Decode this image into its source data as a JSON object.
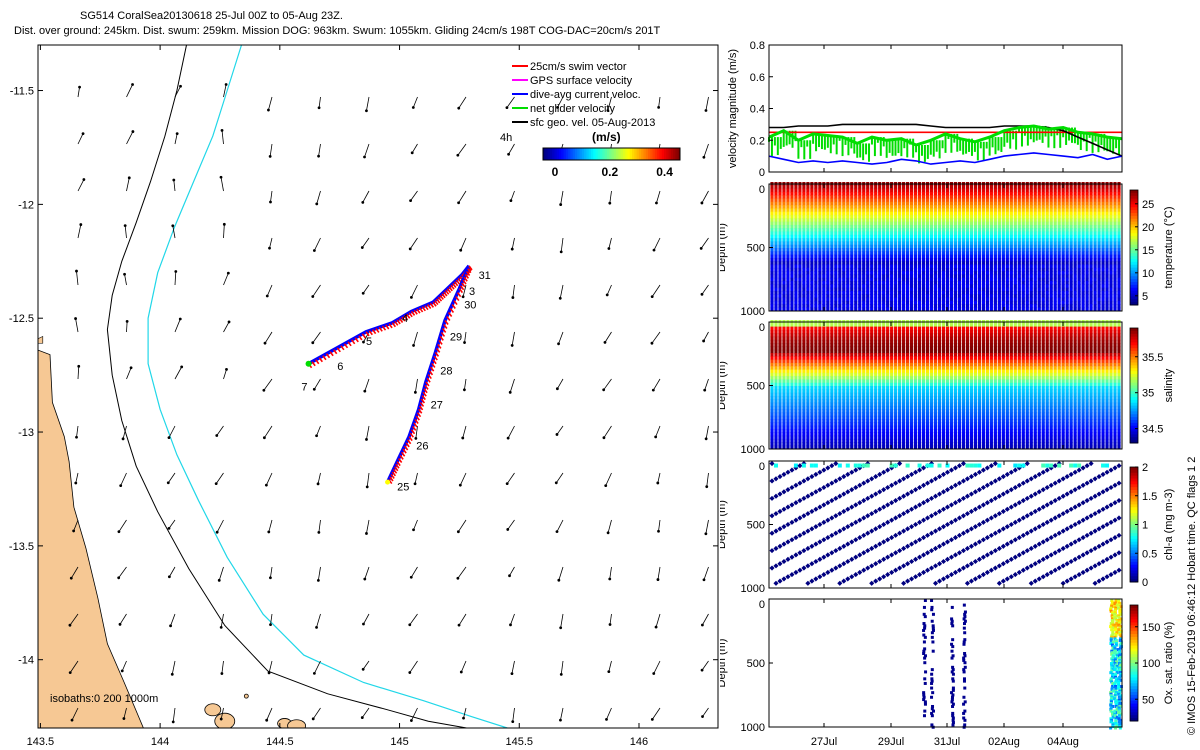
{
  "header": {
    "line1": "SG514 CoralSea20130618 25-Jul 00Z to 05-Aug 23Z.",
    "line2": "Dist. over ground: 245km. Dist. swum: 259km. Mission DOG: 963km. Swum: 1055km. Gliding 24cm/s 198T COG-DAC=20cm/s 201T"
  },
  "copyright": "© IMOS 15-Feb-2019 06:46:12 Hobart time. QC flags 1  2",
  "colors": {
    "land": "#f6c894",
    "isobath200": "#000000",
    "isobath1000": "#21d7e8",
    "track_red": "#ff0000",
    "track_blue": "#0000ff",
    "net_green": "#00dd00",
    "swim_red": "#ff0000"
  },
  "chart_data": [
    {
      "type": "map",
      "x_ticks": [
        "143.5",
        "144",
        "144.5",
        "145",
        "145.5",
        "146"
      ],
      "y_ticks": [
        "-11.5",
        "-12",
        "-12.5",
        "-13",
        "-13.5",
        "-14"
      ],
      "xlim": [
        143.49,
        146.33
      ],
      "ylim": [
        -14.3,
        -11.3
      ],
      "legend": {
        "position": "top-right",
        "entries": [
          {
            "label": "25cm/s swim vector",
            "color": "#ff0000"
          },
          {
            "label": "GPS surface velocity",
            "color": "#ff00ff"
          },
          {
            "label": "dive-avg current veloc.",
            "color": "#0000ff"
          },
          {
            "label": "net glider velocity",
            "color": "#00dd00"
          },
          {
            "label": "sfc geo. vel. 05-Aug-2013",
            "color": "#000000"
          }
        ]
      },
      "vector_interval_label": "4h",
      "colorbar": {
        "title": "(m/s)",
        "ticks": [
          "0",
          "0.2",
          "0.4"
        ],
        "range": [
          0,
          0.5
        ]
      },
      "isobath_label": "isobaths:0   200  1000m",
      "track_leg1": [
        [
          144.62,
          -12.7
        ],
        [
          144.74,
          -12.63
        ],
        [
          144.86,
          -12.56
        ],
        [
          144.97,
          -12.52
        ],
        [
          145.05,
          -12.47
        ],
        [
          145.14,
          -12.43
        ],
        [
          145.2,
          -12.37
        ],
        [
          145.26,
          -12.31
        ],
        [
          145.29,
          -12.27
        ]
      ],
      "track_leg2": [
        [
          145.29,
          -12.27
        ],
        [
          145.25,
          -12.37
        ],
        [
          145.19,
          -12.51
        ],
        [
          145.15,
          -12.65
        ],
        [
          145.11,
          -12.78
        ],
        [
          145.08,
          -12.9
        ],
        [
          145.04,
          -13.02
        ],
        [
          144.99,
          -13.13
        ],
        [
          144.95,
          -13.22
        ]
      ],
      "day_labels": [
        {
          "text": "25",
          "lon": 144.99,
          "lat": -13.24
        },
        {
          "text": "26",
          "lon": 145.07,
          "lat": -13.06
        },
        {
          "text": "27",
          "lon": 145.13,
          "lat": -12.88
        },
        {
          "text": "28",
          "lon": 145.17,
          "lat": -12.73
        },
        {
          "text": "29",
          "lon": 145.21,
          "lat": -12.58
        },
        {
          "text": "30",
          "lon": 145.27,
          "lat": -12.44
        },
        {
          "text": "31",
          "lon": 145.33,
          "lat": -12.31
        },
        {
          "text": "3",
          "lon": 145.29,
          "lat": -12.38
        },
        {
          "text": "4",
          "lon": 145.01,
          "lat": -12.5
        },
        {
          "text": "5",
          "lon": 144.86,
          "lat": -12.6
        },
        {
          "text": "6",
          "lon": 144.74,
          "lat": -12.71
        },
        {
          "text": "7",
          "lon": 144.59,
          "lat": -12.8
        }
      ],
      "coast": [
        [
          143.49,
          -12.64
        ],
        [
          143.54,
          -12.66
        ],
        [
          143.55,
          -12.87
        ],
        [
          143.6,
          -13.02
        ],
        [
          143.62,
          -13.13
        ],
        [
          143.64,
          -13.33
        ],
        [
          143.69,
          -13.51
        ],
        [
          143.74,
          -13.73
        ],
        [
          143.78,
          -13.93
        ],
        [
          143.85,
          -14.1
        ],
        [
          143.93,
          -14.3
        ],
        [
          143.49,
          -14.3
        ]
      ],
      "iso200": [
        [
          144.11,
          -11.3
        ],
        [
          144.07,
          -11.5
        ],
        [
          144.02,
          -11.7
        ],
        [
          143.96,
          -11.9
        ],
        [
          143.9,
          -12.08
        ],
        [
          143.84,
          -12.25
        ],
        [
          143.8,
          -12.4
        ],
        [
          143.78,
          -12.55
        ],
        [
          143.8,
          -12.75
        ],
        [
          143.84,
          -12.95
        ],
        [
          143.9,
          -13.15
        ],
        [
          143.99,
          -13.35
        ],
        [
          144.12,
          -13.6
        ],
        [
          144.27,
          -13.85
        ],
        [
          144.45,
          -14.05
        ],
        [
          144.7,
          -14.15
        ],
        [
          144.95,
          -14.22
        ],
        [
          145.12,
          -14.27
        ],
        [
          145.28,
          -14.3
        ]
      ],
      "iso1000": [
        [
          144.34,
          -11.3
        ],
        [
          144.28,
          -11.5
        ],
        [
          144.22,
          -11.7
        ],
        [
          144.14,
          -11.9
        ],
        [
          144.06,
          -12.1
        ],
        [
          143.99,
          -12.3
        ],
        [
          143.95,
          -12.5
        ],
        [
          143.95,
          -12.7
        ],
        [
          144.0,
          -12.9
        ],
        [
          144.07,
          -13.1
        ],
        [
          144.16,
          -13.3
        ],
        [
          144.28,
          -13.55
        ],
        [
          144.43,
          -13.8
        ],
        [
          144.6,
          -13.98
        ],
        [
          144.85,
          -14.1
        ],
        [
          145.1,
          -14.18
        ],
        [
          145.3,
          -14.25
        ],
        [
          145.45,
          -14.3
        ]
      ]
    },
    {
      "type": "line",
      "ylabel": "velocity magnitude (m/s)",
      "ylim": [
        0,
        0.8
      ],
      "y_ticks": [
        "0",
        "0.2",
        "0.4",
        "0.6",
        "0.8"
      ],
      "x": [
        0,
        0.5,
        1,
        1.5,
        2,
        2.5,
        3,
        3.5,
        4,
        4.5,
        5,
        5.5,
        6,
        6.5,
        7,
        7.5,
        8,
        8.5,
        9,
        9.5,
        10,
        10.5,
        11,
        11.5,
        12
      ],
      "series": [
        {
          "color": "#ff0000",
          "values": [
            0.25,
            0.25,
            0.25,
            0.25,
            0.25,
            0.25,
            0.25,
            0.25,
            0.25,
            0.25,
            0.25,
            0.25,
            0.25,
            0.25,
            0.25,
            0.25,
            0.25,
            0.25,
            0.25,
            0.25,
            0.25,
            0.25,
            0.25,
            0.25,
            0.25
          ]
        },
        {
          "color": "#000000",
          "values": [
            0.28,
            0.28,
            0.29,
            0.29,
            0.29,
            0.3,
            0.3,
            0.3,
            0.3,
            0.3,
            0.3,
            0.29,
            0.28,
            0.28,
            0.28,
            0.28,
            0.29,
            0.29,
            0.29,
            0.28,
            0.26,
            0.22,
            0.18,
            0.14,
            0.1
          ]
        },
        {
          "color": "#0000ff",
          "values": [
            0.1,
            0.08,
            0.06,
            0.07,
            0.06,
            0.07,
            0.06,
            0.05,
            0.06,
            0.08,
            0.07,
            0.05,
            0.06,
            0.07,
            0.06,
            0.08,
            0.1,
            0.11,
            0.12,
            0.11,
            0.1,
            0.09,
            0.11,
            0.08,
            0.1
          ]
        },
        {
          "color": "#00dd00",
          "values": [
            0.22,
            0.26,
            0.2,
            0.24,
            0.23,
            0.22,
            0.18,
            0.22,
            0.2,
            0.21,
            0.17,
            0.2,
            0.24,
            0.21,
            0.19,
            0.22,
            0.26,
            0.28,
            0.29,
            0.27,
            0.28,
            0.25,
            0.24,
            0.22,
            0.21
          ]
        }
      ]
    },
    {
      "type": "heatmap",
      "xlabel": "",
      "ylabel": "Depth (m)",
      "colorbar_label": "temperature (°C)",
      "y_ticks": [
        "0",
        "500",
        "1000"
      ],
      "colorbar_ticks": [
        "5",
        "10",
        "15",
        "20",
        "25"
      ],
      "clim": [
        3,
        28
      ]
    },
    {
      "type": "heatmap",
      "ylabel": "Depth (m)",
      "colorbar_label": "salinity",
      "y_ticks": [
        "0",
        "500",
        "1000"
      ],
      "colorbar_ticks": [
        "34.5",
        "35",
        "35.5"
      ],
      "clim": [
        34.3,
        35.9
      ]
    },
    {
      "type": "scatter",
      "ylabel": "Depth (m)",
      "colorbar_label": "chl-a (mg m-3)",
      "y_ticks": [
        "0",
        "500",
        "1000"
      ],
      "colorbar_ticks": [
        "0",
        "0.5",
        "1",
        "1.5",
        "2"
      ],
      "clim": [
        0,
        2
      ]
    },
    {
      "type": "scatter",
      "ylabel": "Depth (m)",
      "colorbar_label": "Ox. sat. ratio (%)",
      "y_ticks": [
        "0",
        "500",
        "1000"
      ],
      "colorbar_ticks": [
        "50",
        "100",
        "150"
      ],
      "clim": [
        20,
        180
      ],
      "x_ticks": [
        "27Jul",
        "29Jul",
        "31Jul",
        "02Aug",
        "04Aug"
      ]
    }
  ]
}
